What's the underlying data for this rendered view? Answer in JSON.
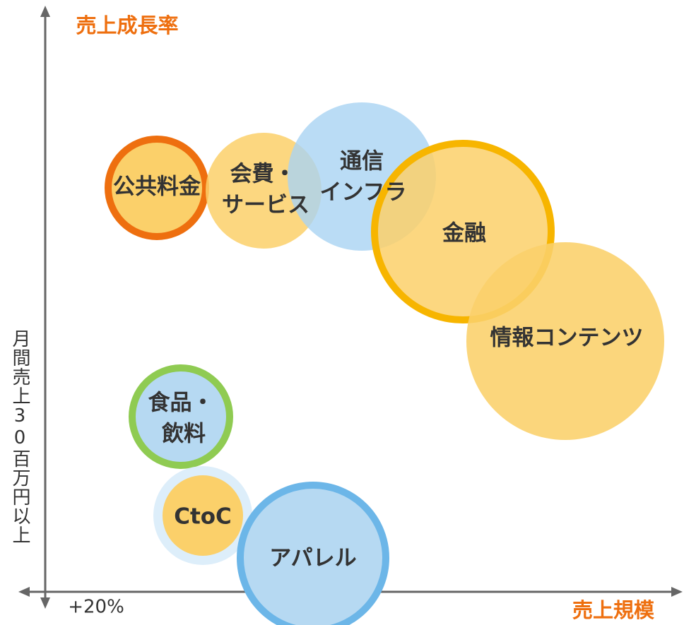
{
  "y_axis_title": "売上成長率",
  "x_axis_title": "売上規模",
  "y_axis_note": "月間売上30百万円以上",
  "x_axis_note": "+20%",
  "nodes": [
    {
      "label": [
        "公共料金"
      ]
    },
    {
      "label": [
        "会費・",
        "サービス"
      ]
    },
    {
      "label": [
        "通信",
        "インフラ"
      ]
    },
    {
      "label": [
        "金融"
      ]
    },
    {
      "label": [
        "情報コンテンツ"
      ]
    },
    {
      "label": [
        "食品・",
        "飲料"
      ]
    },
    {
      "label": [
        "CtoC"
      ]
    },
    {
      "label": [
        "アパレル"
      ]
    }
  ]
}
